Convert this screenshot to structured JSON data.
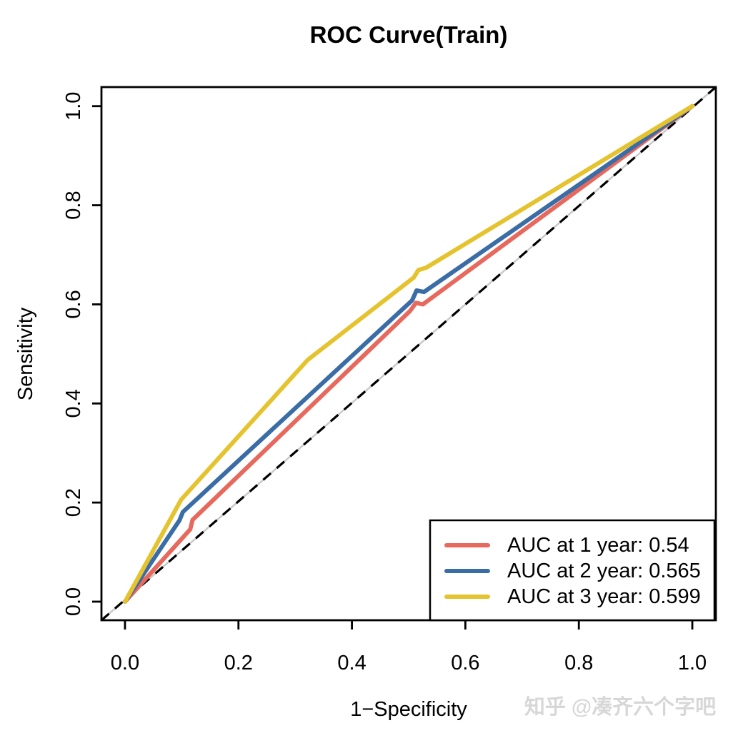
{
  "figure": {
    "watermark": "知乎 @凑齐六个字吧"
  },
  "chart_data": {
    "type": "line",
    "title": "ROC Curve(Train)",
    "xlabel": "1−Specificity",
    "ylabel": "Sensitivity",
    "xlim": [
      -0.0415,
      1.0415
    ],
    "ylim": [
      -0.0375,
      1.0385
    ],
    "x_tick_values": [
      0.0,
      0.2,
      0.4,
      0.6,
      0.8,
      1.0
    ],
    "x_tick_labels": [
      "0.0",
      "0.2",
      "0.4",
      "0.6",
      "0.8",
      "1.0"
    ],
    "y_tick_values": [
      0.0,
      0.2,
      0.4,
      0.6,
      0.8,
      1.0
    ],
    "y_tick_labels": [
      "0.0",
      "0.2",
      "0.4",
      "0.6",
      "0.8",
      "1.0"
    ],
    "grid": false,
    "legend_position": "bottomright",
    "diagonal": {
      "style": "dashed",
      "color": "#000000",
      "underlay_color": "#c9c9c9",
      "from": [
        0,
        0
      ],
      "to": [
        1,
        1
      ]
    },
    "series": [
      {
        "name": "1 year",
        "auc": 0.54,
        "label": "AUC at 1 year: 0.54",
        "color": "#e7695d",
        "points": [
          [
            0,
            0
          ],
          [
            0.115,
            0.146
          ],
          [
            0.119,
            0.165
          ],
          [
            0.502,
            0.586
          ],
          [
            0.513,
            0.603
          ],
          [
            0.525,
            0.6
          ],
          [
            1,
            1
          ]
        ]
      },
      {
        "name": "2 year",
        "auc": 0.565,
        "label": "AUC at 2 year: 0.565",
        "color": "#3a6da6",
        "points": [
          [
            0,
            0
          ],
          [
            0.096,
            0.164
          ],
          [
            0.102,
            0.181
          ],
          [
            0.506,
            0.608
          ],
          [
            0.514,
            0.628
          ],
          [
            0.527,
            0.625
          ],
          [
            1,
            1
          ]
        ]
      },
      {
        "name": "3 year",
        "auc": 0.599,
        "label": "AUC at 3 year: 0.599",
        "color": "#e5c32e",
        "points": [
          [
            0,
            0
          ],
          [
            0.099,
            0.206
          ],
          [
            0.322,
            0.488
          ],
          [
            0.509,
            0.654
          ],
          [
            0.517,
            0.669
          ],
          [
            0.531,
            0.674
          ],
          [
            1,
            1
          ]
        ]
      }
    ]
  }
}
